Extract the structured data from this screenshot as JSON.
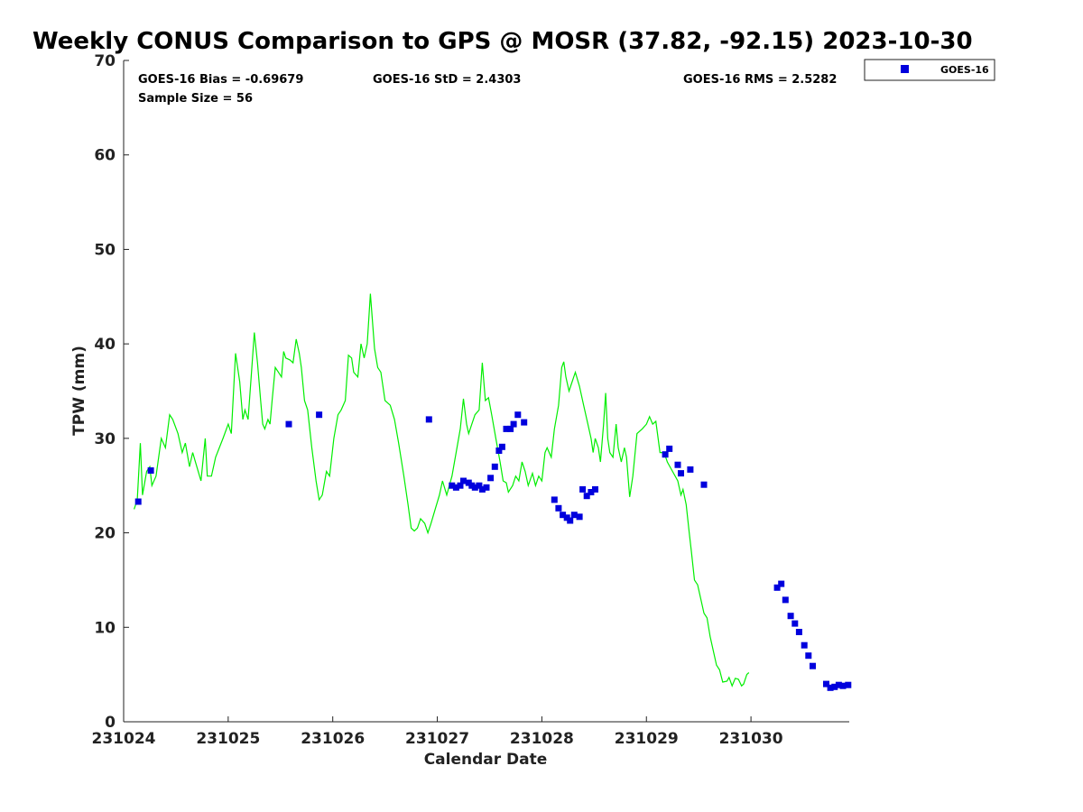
{
  "chart_data": {
    "type": "line",
    "title": "Weekly CONUS Comparison to GPS @ MOSR (37.82, -92.15) 2023-10-30",
    "xlabel": "Calendar Date",
    "ylabel": "TPW (mm)",
    "xlim": [
      0,
      6.94
    ],
    "ylim": [
      0,
      70
    ],
    "x_ticks": [
      0,
      1,
      2,
      3,
      4,
      5,
      6
    ],
    "x_tick_labels": [
      "231024",
      "231025",
      "231026",
      "231027",
      "231028",
      "231029",
      "231030"
    ],
    "y_ticks": [
      0,
      10,
      20,
      30,
      40,
      50,
      60,
      70
    ],
    "y_tick_labels": [
      "0",
      "10",
      "20",
      "30",
      "40",
      "50",
      "60",
      "70"
    ],
    "grid": false,
    "legend_position": "top-right",
    "stats": {
      "bias": "GOES-16 Bias = -0.69679",
      "std": "GOES-16 StD = 2.4303",
      "rms": "GOES-16 RMS = 2.5282",
      "sample_size": "Sample Size = 56"
    },
    "gps_line": {
      "color": "#00ee00",
      "points": [
        [
          0.1,
          22.5
        ],
        [
          0.13,
          23.5
        ],
        [
          0.16,
          29.5
        ],
        [
          0.18,
          24.0
        ],
        [
          0.22,
          26.5
        ],
        [
          0.25,
          27.0
        ],
        [
          0.27,
          25.0
        ],
        [
          0.31,
          26.0
        ],
        [
          0.36,
          30.0
        ],
        [
          0.4,
          29.0
        ],
        [
          0.44,
          32.5
        ],
        [
          0.47,
          32.0
        ],
        [
          0.52,
          30.5
        ],
        [
          0.56,
          28.5
        ],
        [
          0.59,
          29.5
        ],
        [
          0.63,
          27.0
        ],
        [
          0.66,
          28.5
        ],
        [
          0.7,
          27.0
        ],
        [
          0.74,
          25.5
        ],
        [
          0.78,
          30.0
        ],
        [
          0.8,
          26.0
        ],
        [
          0.84,
          26.0
        ],
        [
          0.88,
          28.0
        ],
        [
          0.95,
          30.0
        ],
        [
          1.0,
          31.5
        ],
        [
          1.03,
          30.5
        ],
        [
          1.07,
          39.0
        ],
        [
          1.11,
          36.0
        ],
        [
          1.14,
          32.0
        ],
        [
          1.16,
          33.0
        ],
        [
          1.19,
          32.0
        ],
        [
          1.22,
          36.5
        ],
        [
          1.25,
          41.2
        ],
        [
          1.28,
          38.0
        ],
        [
          1.31,
          34.0
        ],
        [
          1.33,
          31.5
        ],
        [
          1.35,
          31.0
        ],
        [
          1.38,
          32.0
        ],
        [
          1.4,
          31.5
        ],
        [
          1.42,
          34.0
        ],
        [
          1.45,
          37.5
        ],
        [
          1.48,
          37.0
        ],
        [
          1.51,
          36.5
        ],
        [
          1.53,
          39.2
        ],
        [
          1.55,
          38.5
        ],
        [
          1.59,
          38.3
        ],
        [
          1.62,
          38.0
        ],
        [
          1.65,
          40.5
        ],
        [
          1.68,
          39.0
        ],
        [
          1.7,
          37.5
        ],
        [
          1.73,
          34.0
        ],
        [
          1.76,
          33.0
        ],
        [
          1.8,
          29.0
        ],
        [
          1.84,
          25.5
        ],
        [
          1.87,
          23.5
        ],
        [
          1.9,
          24.0
        ],
        [
          1.94,
          26.5
        ],
        [
          1.97,
          26.0
        ],
        [
          2.01,
          30.0
        ],
        [
          2.05,
          32.5
        ],
        [
          2.08,
          33.0
        ],
        [
          2.12,
          34.0
        ],
        [
          2.15,
          38.8
        ],
        [
          2.18,
          38.5
        ],
        [
          2.2,
          37.0
        ],
        [
          2.24,
          36.5
        ],
        [
          2.27,
          40.0
        ],
        [
          2.3,
          38.5
        ],
        [
          2.33,
          40.0
        ],
        [
          2.36,
          45.3
        ],
        [
          2.4,
          39.5
        ],
        [
          2.43,
          37.5
        ],
        [
          2.46,
          37.0
        ],
        [
          2.5,
          34.0
        ],
        [
          2.55,
          33.5
        ],
        [
          2.59,
          32.0
        ],
        [
          2.63,
          29.5
        ],
        [
          2.68,
          26.0
        ],
        [
          2.72,
          23.0
        ],
        [
          2.75,
          20.5
        ],
        [
          2.78,
          20.2
        ],
        [
          2.81,
          20.5
        ],
        [
          2.84,
          21.5
        ],
        [
          2.88,
          21.0
        ],
        [
          2.91,
          20.0
        ],
        [
          2.94,
          21.0
        ],
        [
          2.98,
          22.5
        ],
        [
          3.02,
          24.0
        ],
        [
          3.05,
          25.5
        ],
        [
          3.09,
          24.0
        ],
        [
          3.14,
          26.0
        ],
        [
          3.18,
          28.5
        ],
        [
          3.22,
          31.0
        ],
        [
          3.25,
          34.2
        ],
        [
          3.28,
          31.5
        ],
        [
          3.3,
          30.5
        ],
        [
          3.33,
          31.5
        ],
        [
          3.36,
          32.5
        ],
        [
          3.4,
          33.0
        ],
        [
          3.43,
          38.0
        ],
        [
          3.46,
          34.0
        ],
        [
          3.49,
          34.3
        ],
        [
          3.52,
          32.5
        ],
        [
          3.56,
          30.0
        ],
        [
          3.6,
          27.5
        ],
        [
          3.63,
          25.5
        ],
        [
          3.66,
          25.3
        ],
        [
          3.68,
          24.3
        ],
        [
          3.72,
          25.0
        ],
        [
          3.75,
          26.0
        ],
        [
          3.78,
          25.5
        ],
        [
          3.81,
          27.5
        ],
        [
          3.84,
          26.5
        ],
        [
          3.87,
          25.0
        ],
        [
          3.91,
          26.3
        ],
        [
          3.94,
          25.0
        ],
        [
          3.97,
          26.0
        ],
        [
          4.0,
          25.5
        ],
        [
          4.03,
          28.5
        ],
        [
          4.05,
          29.0
        ],
        [
          4.09,
          28.0
        ],
        [
          4.12,
          31.0
        ],
        [
          4.16,
          33.5
        ],
        [
          4.19,
          37.5
        ],
        [
          4.21,
          38.1
        ],
        [
          4.23,
          36.5
        ],
        [
          4.26,
          35.0
        ],
        [
          4.29,
          36.0
        ],
        [
          4.32,
          37.0
        ],
        [
          4.36,
          35.5
        ],
        [
          4.4,
          33.5
        ],
        [
          4.44,
          31.5
        ],
        [
          4.47,
          30.0
        ],
        [
          4.49,
          28.5
        ],
        [
          4.51,
          30.0
        ],
        [
          4.54,
          29.0
        ],
        [
          4.56,
          27.5
        ],
        [
          4.59,
          31.5
        ],
        [
          4.61,
          34.8
        ],
        [
          4.63,
          30.0
        ],
        [
          4.65,
          28.5
        ],
        [
          4.68,
          28.0
        ],
        [
          4.71,
          31.5
        ],
        [
          4.73,
          29.0
        ],
        [
          4.76,
          27.5
        ],
        [
          4.79,
          29.0
        ],
        [
          4.81,
          28.0
        ],
        [
          4.84,
          23.8
        ],
        [
          4.87,
          26.0
        ],
        [
          4.91,
          30.5
        ],
        [
          4.96,
          31.0
        ],
        [
          5.0,
          31.5
        ],
        [
          5.03,
          32.3
        ],
        [
          5.06,
          31.5
        ],
        [
          5.09,
          31.8
        ],
        [
          5.13,
          28.5
        ],
        [
          5.17,
          28.5
        ],
        [
          5.2,
          27.5
        ],
        [
          5.25,
          26.5
        ],
        [
          5.3,
          25.5
        ],
        [
          5.33,
          24.0
        ],
        [
          5.35,
          24.6
        ],
        [
          5.38,
          23.0
        ],
        [
          5.41,
          20.0
        ],
        [
          5.43,
          18.0
        ],
        [
          5.46,
          15.0
        ],
        [
          5.49,
          14.5
        ],
        [
          5.52,
          13.0
        ],
        [
          5.55,
          11.5
        ],
        [
          5.58,
          11.0
        ],
        [
          5.61,
          9.0
        ],
        [
          5.64,
          7.5
        ],
        [
          5.67,
          6.0
        ],
        [
          5.7,
          5.5
        ],
        [
          5.73,
          4.2
        ],
        [
          5.77,
          4.3
        ],
        [
          5.79,
          4.7
        ],
        [
          5.82,
          3.8
        ],
        [
          5.85,
          4.6
        ],
        [
          5.88,
          4.5
        ],
        [
          5.91,
          3.8
        ],
        [
          5.93,
          4.0
        ],
        [
          5.96,
          5.0
        ],
        [
          5.98,
          5.2
        ]
      ]
    },
    "series": [
      {
        "name": "GOES-16",
        "color": "#0000dd",
        "points": [
          [
            0.14,
            23.3
          ],
          [
            0.26,
            26.6
          ],
          [
            1.58,
            31.5
          ],
          [
            1.87,
            32.5
          ],
          [
            2.92,
            32.0
          ],
          [
            3.14,
            25.0
          ],
          [
            3.18,
            24.8
          ],
          [
            3.22,
            25.0
          ],
          [
            3.25,
            25.5
          ],
          [
            3.3,
            25.3
          ],
          [
            3.33,
            25.0
          ],
          [
            3.36,
            24.8
          ],
          [
            3.4,
            25.0
          ],
          [
            3.43,
            24.6
          ],
          [
            3.47,
            24.8
          ],
          [
            3.51,
            25.8
          ],
          [
            3.55,
            27.0
          ],
          [
            3.59,
            28.7
          ],
          [
            3.62,
            29.1
          ],
          [
            3.66,
            31.0
          ],
          [
            3.7,
            31.0
          ],
          [
            3.73,
            31.5
          ],
          [
            3.77,
            32.5
          ],
          [
            3.83,
            31.7
          ],
          [
            4.12,
            23.5
          ],
          [
            4.16,
            22.6
          ],
          [
            4.2,
            21.9
          ],
          [
            4.24,
            21.6
          ],
          [
            4.27,
            21.3
          ],
          [
            4.31,
            21.9
          ],
          [
            4.36,
            21.7
          ],
          [
            4.39,
            24.6
          ],
          [
            4.43,
            23.9
          ],
          [
            4.47,
            24.3
          ],
          [
            4.51,
            24.6
          ],
          [
            5.18,
            28.3
          ],
          [
            5.22,
            28.9
          ],
          [
            5.3,
            27.2
          ],
          [
            5.33,
            26.3
          ],
          [
            5.42,
            26.7
          ],
          [
            5.55,
            25.1
          ],
          [
            6.25,
            14.2
          ],
          [
            6.29,
            14.6
          ],
          [
            6.33,
            12.9
          ],
          [
            6.38,
            11.2
          ],
          [
            6.42,
            10.4
          ],
          [
            6.46,
            9.5
          ],
          [
            6.51,
            8.1
          ],
          [
            6.55,
            7.0
          ],
          [
            6.59,
            5.9
          ],
          [
            6.72,
            4.0
          ],
          [
            6.76,
            3.6
          ],
          [
            6.8,
            3.7
          ],
          [
            6.84,
            3.9
          ],
          [
            6.88,
            3.8
          ],
          [
            6.93,
            3.9
          ]
        ]
      }
    ]
  }
}
